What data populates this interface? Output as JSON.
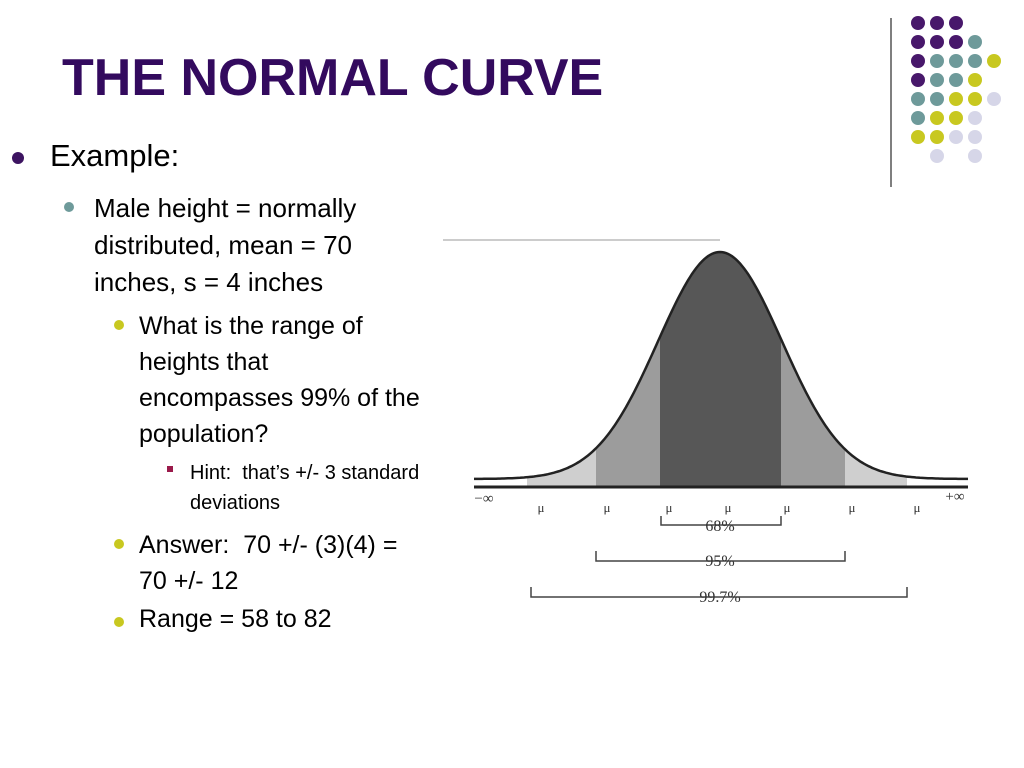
{
  "header": {
    "title": "THE NORMAL CURVE"
  },
  "bullets": [
    {
      "text": "Example:"
    },
    {
      "text": "Male height = normally distributed, mean = 70 inches, s = 4 inches"
    },
    {
      "text": "What is the range of heights that encompasses 99% of the population?"
    },
    {
      "text": "Hint:  that’s +/- 3 standard deviations"
    },
    {
      "text": "Answer:  70 +/- (3)(4) =     70 +/- 12"
    },
    {
      "text": "Range = 58 to 82"
    }
  ],
  "figure": {
    "left_label": "−∞",
    "right_label": "+∞",
    "tick_labels": [
      "μ",
      "μ",
      "μ",
      "μ",
      "μ",
      "μ",
      "μ"
    ],
    "ranges": [
      "68%",
      "95%",
      "99.7%"
    ]
  }
}
